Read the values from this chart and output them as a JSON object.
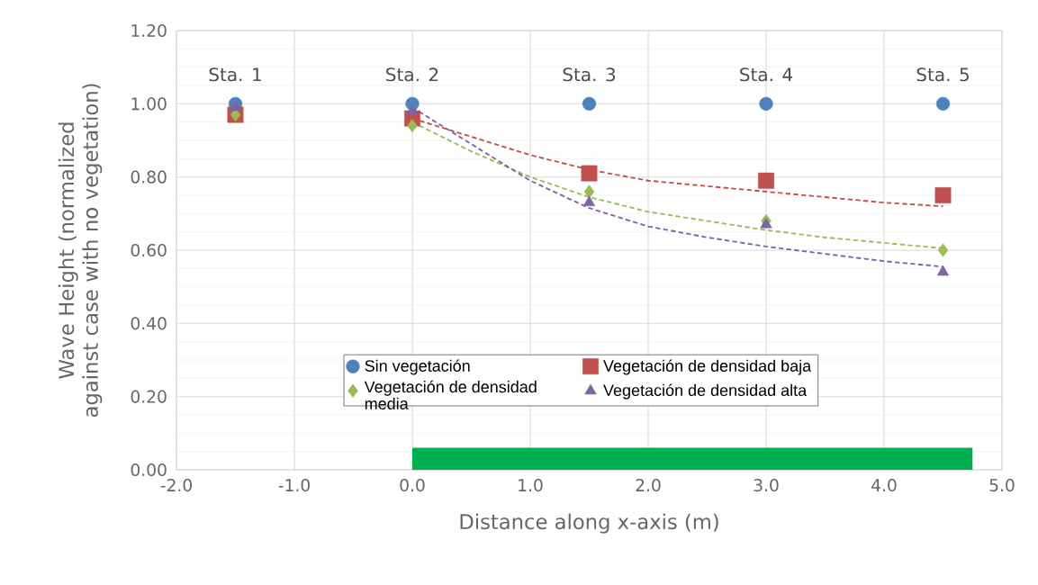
{
  "chart_data": {
    "type": "scatter",
    "xlabel": "Distance along x-axis (m)",
    "ylabel": "Wave Height (normalized against case with no vegetation)",
    "xlim": [
      -2,
      5
    ],
    "ylim": [
      0,
      1.2
    ],
    "xticks": [
      {
        "value": -2,
        "label": "-2.0"
      },
      {
        "value": -1,
        "label": "-1.0"
      },
      {
        "value": 0,
        "label": "0.0"
      },
      {
        "value": 1,
        "label": "1.0"
      },
      {
        "value": 2,
        "label": "2.0"
      },
      {
        "value": 3,
        "label": "3.0"
      },
      {
        "value": 4,
        "label": "4.0"
      },
      {
        "value": 5,
        "label": "5.0"
      }
    ],
    "yticks": [
      {
        "value": 0,
        "label": "0.00"
      },
      {
        "value": 0.2,
        "label": "0.20"
      },
      {
        "value": 0.4,
        "label": "0.40"
      },
      {
        "value": 0.6,
        "label": "0.60"
      },
      {
        "value": 0.8,
        "label": "0.80"
      },
      {
        "value": 1,
        "label": "1.00"
      },
      {
        "value": 1.2,
        "label": "1.20"
      }
    ],
    "grid": true,
    "legend": "bottom",
    "x": [
      -1.5,
      0,
      1.5,
      3,
      4.5
    ],
    "series": [
      {
        "type": "area",
        "color": "#00b050",
        "x": [
          0,
          4.75
        ],
        "values": [
          0.06,
          0.06
        ]
      },
      {
        "type": "line",
        "color": "#c0504d",
        "line_style": "dashed",
        "marker": "none",
        "x": [
          0,
          0.5,
          1,
          1.5,
          2,
          2.5,
          3,
          3.5,
          4,
          4.5
        ],
        "values": [
          0.96,
          0.91,
          0.86,
          0.82,
          0.79,
          0.775,
          0.76,
          0.745,
          0.73,
          0.72
        ]
      },
      {
        "type": "line",
        "color": "#9bbb59",
        "line_style": "dashed",
        "marker": "none",
        "x": [
          0,
          0.5,
          1,
          1.5,
          2,
          2.5,
          3,
          3.5,
          4,
          4.5
        ],
        "values": [
          0.95,
          0.87,
          0.8,
          0.745,
          0.705,
          0.68,
          0.655,
          0.635,
          0.62,
          0.605
        ]
      },
      {
        "type": "line",
        "color": "#8064a2",
        "line_style": "dashed",
        "marker": "none",
        "x": [
          0,
          0.5,
          1,
          1.5,
          2,
          2.5,
          3,
          3.5,
          4,
          4.5
        ],
        "values": [
          0.99,
          0.89,
          0.79,
          0.715,
          0.665,
          0.635,
          0.61,
          0.59,
          0.57,
          0.555
        ]
      },
      {
        "name": "Sin vegetación",
        "color": "#4f81bd",
        "marker": "circle",
        "values": [
          1.0,
          1.0,
          1.0,
          1.0,
          1.0
        ]
      },
      {
        "name": "Vegetación de densidad baja",
        "color": "#c0504d",
        "marker": "square",
        "values": [
          0.97,
          0.96,
          0.81,
          0.79,
          0.75
        ]
      },
      {
        "name": "Vegetación de densidad media",
        "color": "#9bbb59",
        "marker": "diamond",
        "values": [
          0.97,
          0.94,
          0.76,
          0.68,
          0.6
        ]
      },
      {
        "name": "Vegetación de densidad alta",
        "color": "#8064a2",
        "marker": "triangle",
        "values": [
          0.99,
          0.98,
          0.73,
          0.67,
          0.54
        ]
      }
    ],
    "annotations": [
      "Sta. 1",
      "Sta. 2",
      "Sta. 3",
      "Sta. 4",
      "Sta. 5"
    ]
  }
}
